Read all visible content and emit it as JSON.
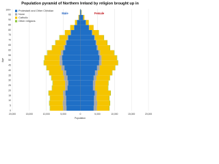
{
  "chart_data": {
    "type": "pyramid",
    "title": "Population pyramid of Northern Ireland by religion brought up in",
    "x_label": "Population",
    "y_label": "Age",
    "left_label": "Male",
    "left_color": "#1f5fbf",
    "right_label": "Female",
    "right_color": "#c0141a",
    "categories": [
      "0",
      "5",
      "10",
      "15",
      "20",
      "25",
      "30",
      "35",
      "40",
      "45",
      "50",
      "55",
      "60",
      "65",
      "70",
      "75",
      "80",
      "85",
      "90",
      "95",
      "100+"
    ],
    "xlim": [
      -20000,
      20000
    ],
    "xticks": [
      {
        "value": -20000,
        "label": "20,000"
      },
      {
        "value": -15000,
        "label": "15,000"
      },
      {
        "value": -10000,
        "label": "10,000"
      },
      {
        "value": -5000,
        "label": "5,000"
      },
      0,
      {
        "value": 5000,
        "label": "5,000"
      },
      {
        "value": 10000,
        "label": "10,000"
      },
      {
        "value": 15000,
        "label": "15,000"
      },
      {
        "value": 20000,
        "label": "20,000"
      }
    ],
    "grid": true,
    "legend": "upper left",
    "series": [
      {
        "name": "Protestant and Other Christian",
        "color": "#1f6fc6",
        "male": [
          -4100,
          -4200,
          -4200,
          -4400,
          -3800,
          -3600,
          -3800,
          -4200,
          -4700,
          -5300,
          -5400,
          -5100,
          -4500,
          -4100,
          -3600,
          -2800,
          -1850,
          -1000,
          -380,
          -95,
          -20
        ],
        "female": [
          3900,
          4000,
          4000,
          4200,
          3700,
          3700,
          3900,
          4300,
          4900,
          5500,
          5600,
          5300,
          4800,
          4500,
          4100,
          3400,
          2500,
          1600,
          800,
          250,
          60
        ]
      },
      {
        "name": "None",
        "color": "#a9a9a9",
        "male": [
          -1000,
          -1000,
          -800,
          -700,
          -700,
          -900,
          -1000,
          -900,
          -900,
          -800,
          -700,
          -600,
          -400,
          -300,
          -200,
          -100,
          -80,
          -40,
          -10,
          -5,
          0
        ],
        "female": [
          950,
          950,
          750,
          650,
          600,
          700,
          800,
          800,
          750,
          700,
          600,
          500,
          350,
          250,
          150,
          100,
          60,
          40,
          20,
          5,
          0
        ]
      },
      {
        "name": "Catholic",
        "color": "#f5c400",
        "male": [
          -3800,
          -3900,
          -3900,
          -4200,
          -3800,
          -3600,
          -3700,
          -4000,
          -4300,
          -4600,
          -4400,
          -4000,
          -3400,
          -2900,
          -2300,
          -1650,
          -1050,
          -550,
          -200,
          -50,
          -10
        ],
        "female": [
          3600,
          3700,
          3700,
          4000,
          3800,
          3800,
          3900,
          4200,
          4500,
          4800,
          4500,
          4100,
          3500,
          3100,
          2600,
          1900,
          1300,
          800,
          350,
          100,
          20
        ]
      },
      {
        "name": "Other religions",
        "color": "#8dc63f",
        "male": [
          -100,
          -100,
          -100,
          -100,
          -100,
          -100,
          -100,
          -100,
          -100,
          -100,
          -100,
          -100,
          -100,
          -100,
          -100,
          -50,
          -20,
          -10,
          -10,
          0,
          0
        ],
        "female": [
          100,
          100,
          100,
          100,
          100,
          100,
          100,
          100,
          100,
          100,
          100,
          100,
          100,
          100,
          100,
          50,
          20,
          10,
          10,
          5,
          0
        ]
      }
    ]
  }
}
